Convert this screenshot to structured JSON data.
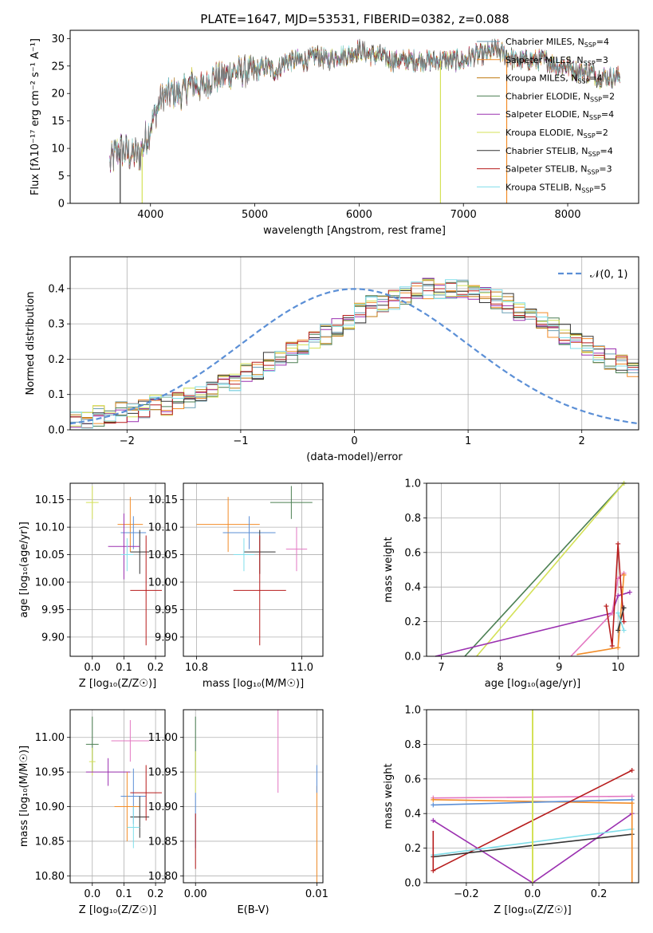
{
  "figure_title": "PLATE=1647, MJD=53531, FIBERID=0382, z=0.088",
  "chart_data": [
    {
      "id": "spectrum",
      "type": "line",
      "title": "PLATE=1647, MJD=53531, FIBERID=0382, z=0.088",
      "xlabel": "wavelength [Angstrom, rest frame]",
      "ylabel": "Flux [f_λ 10^-17 erg cm^-2 s^-1 A^-1]",
      "xlim": [
        3230,
        8680
      ],
      "ylim": [
        0,
        31.5
      ],
      "xticks": [
        4000,
        5000,
        6000,
        7000,
        8000
      ],
      "yticks": [
        0,
        5,
        10,
        15,
        20,
        25,
        30
      ],
      "grid": false,
      "legend_position": "top-right",
      "legend": [
        {
          "label": "Chabrier MILES, N",
          "sub": "SSP",
          "suffix": "=4",
          "color": "#6a9fb5"
        },
        {
          "label": "Salpeter MILES, N",
          "sub": "SSP",
          "suffix": "=3",
          "color": "#f28c28"
        },
        {
          "label": "Kroupa MILES, N",
          "sub": "SSP",
          "suffix": "=4",
          "color": "#c07a10"
        },
        {
          "label": "Chabrier ELODIE, N",
          "sub": "SSP",
          "suffix": "=2",
          "color": "#4b7f52"
        },
        {
          "label": "Salpeter ELODIE, N",
          "sub": "SSP",
          "suffix": "=4",
          "color": "#9b30b0"
        },
        {
          "label": "Kroupa ELODIE, N",
          "sub": "SSP",
          "suffix": "=2",
          "color": "#d4e157"
        },
        {
          "label": "Chabrier STELIB, N",
          "sub": "SSP",
          "suffix": "=4",
          "color": "#333333"
        },
        {
          "label": "Salpeter STELIB, N",
          "sub": "SSP",
          "suffix": "=3",
          "color": "#b71c1c"
        },
        {
          "label": "Kroupa STELIB, N",
          "sub": "SSP",
          "suffix": "=5",
          "color": "#80deea"
        }
      ],
      "x": [
        3600,
        3700,
        3800,
        3900,
        4000,
        4100,
        4200,
        4300,
        4400,
        4500,
        4600,
        4700,
        4800,
        4900,
        5000,
        5100,
        5200,
        5300,
        5400,
        5500,
        5600,
        5700,
        5800,
        5900,
        6000,
        6100,
        6200,
        6300,
        6400,
        6500,
        6600,
        6700,
        6800,
        6900,
        7000,
        7100,
        7200,
        7300,
        7400,
        7500,
        7600,
        7700,
        7800,
        7900,
        8000,
        8100,
        8200,
        8300,
        8400,
        8500
      ],
      "y": [
        7,
        10,
        9,
        9,
        14,
        19,
        20,
        20,
        22,
        21,
        23,
        23,
        24,
        24,
        24,
        25,
        24,
        26,
        26,
        26,
        27,
        26,
        27,
        27,
        28,
        27,
        27,
        26,
        26,
        26,
        26,
        26,
        26,
        26,
        26,
        27,
        27,
        28,
        27,
        26,
        26,
        26,
        26,
        25,
        25,
        24,
        24,
        23,
        23,
        23
      ]
    },
    {
      "id": "residuals",
      "type": "line",
      "xlabel": "(data-model)/error",
      "ylabel": "Normed distribution",
      "xlim": [
        -2.5,
        2.5
      ],
      "ylim": [
        0,
        0.49
      ],
      "xticks": [
        -2,
        -1,
        0,
        1,
        2
      ],
      "yticks": [
        0.0,
        0.1,
        0.2,
        0.3,
        0.4
      ],
      "grid": true,
      "legend_position": "top-right",
      "legend": [
        {
          "label": "𝒩(0, 1)",
          "color": "#5b8fd6"
        }
      ],
      "bin_width": 0.1,
      "bin_start": -2.5,
      "histogram_approx": [
        0.03,
        0.03,
        0.04,
        0.04,
        0.05,
        0.05,
        0.06,
        0.07,
        0.07,
        0.08,
        0.09,
        0.1,
        0.11,
        0.13,
        0.14,
        0.16,
        0.17,
        0.19,
        0.2,
        0.22,
        0.24,
        0.26,
        0.27,
        0.29,
        0.31,
        0.33,
        0.35,
        0.36,
        0.37,
        0.38,
        0.39,
        0.4,
        0.4,
        0.4,
        0.4,
        0.39,
        0.38,
        0.37,
        0.36,
        0.34,
        0.33,
        0.31,
        0.29,
        0.27,
        0.26,
        0.24,
        0.22,
        0.2,
        0.19,
        0.17
      ]
    },
    {
      "id": "age-vs-Z",
      "type": "scatter",
      "xlabel": "Z [log₁₀(Z/Z☉)]",
      "ylabel": "age  [log₁₀(age/yr)]",
      "xlim": [
        -0.07,
        0.23
      ],
      "ylim": [
        9.865,
        10.18
      ],
      "xticks": [
        0.0,
        0.1,
        0.2
      ],
      "yticks": [
        9.9,
        9.95,
        10.0,
        10.05,
        10.1,
        10.15
      ],
      "grid": true
    },
    {
      "id": "age-vs-mass",
      "type": "scatter",
      "xlabel": "mass [log₁₀(M/M☉)]",
      "xlim": [
        10.775,
        11.04
      ],
      "ylim": [
        9.865,
        10.18
      ],
      "xticks": [
        10.8,
        11.0
      ],
      "yticks": [
        9.9,
        9.95,
        10.0,
        10.05,
        10.1,
        10.15
      ],
      "grid": true
    },
    {
      "id": "weight-vs-age",
      "type": "line",
      "xlabel": "age  [log₁₀(age/yr)]",
      "ylabel": "mass weight",
      "xlim": [
        6.75,
        10.35
      ],
      "ylim": [
        0,
        1
      ],
      "xticks": [
        7,
        8,
        9,
        10
      ],
      "yticks": [
        0.0,
        0.2,
        0.4,
        0.6,
        0.8,
        1.0
      ],
      "grid": true
    },
    {
      "id": "mass-vs-Z",
      "type": "scatter",
      "xlabel": "Z [log₁₀(Z/Z☉)]",
      "ylabel": "mass [log₁₀(M/M☉)]",
      "xlim": [
        -0.07,
        0.23
      ],
      "ylim": [
        10.79,
        11.04
      ],
      "xticks": [
        0.0,
        0.1,
        0.2
      ],
      "yticks": [
        10.8,
        10.85,
        10.9,
        10.95,
        11.0
      ],
      "grid": true
    },
    {
      "id": "mass-vs-ebv",
      "type": "scatter",
      "xlabel": "E(B-V)",
      "xlim": [
        -0.001,
        0.0105
      ],
      "ylim": [
        10.79,
        11.04
      ],
      "xticks": [
        0.0,
        0.01
      ],
      "yticks": [
        10.8,
        10.85,
        10.9,
        10.95,
        11.0
      ],
      "grid": true
    },
    {
      "id": "weight-vs-Z",
      "type": "line",
      "xlabel": "Z [log₁₀(Z/Z☉)]",
      "ylabel": "mass weight",
      "xlim": [
        -0.32,
        0.32
      ],
      "ylim": [
        0,
        1
      ],
      "xticks": [
        -0.2,
        0.0,
        0.2
      ],
      "yticks": [
        0.0,
        0.2,
        0.4,
        0.6,
        0.8,
        1.0
      ],
      "grid": true
    }
  ]
}
